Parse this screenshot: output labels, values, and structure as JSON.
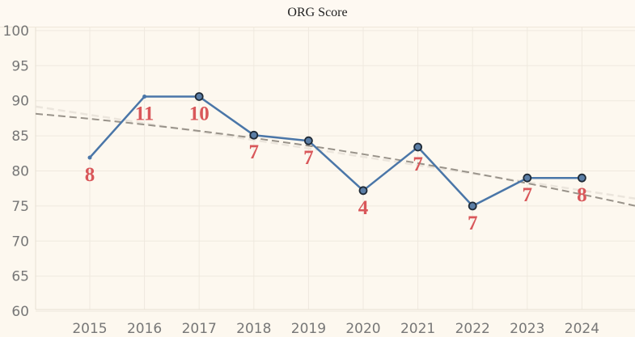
{
  "chart_data": {
    "type": "line",
    "title": "ORG Score",
    "xlabel": "",
    "ylabel": "",
    "categories": [
      "2015",
      "2016",
      "2017",
      "2018",
      "2019",
      "2020",
      "2021",
      "2022",
      "2023",
      "2024"
    ],
    "values": [
      81.9,
      90.6,
      90.6,
      85.1,
      84.3,
      77.2,
      83.4,
      75.0,
      79.0,
      79.0
    ],
    "point_labels": [
      "8",
      "11",
      "10",
      "7",
      "7",
      "4",
      "7",
      "7",
      "7",
      "8"
    ],
    "marked_points": [
      false,
      false,
      true,
      true,
      true,
      true,
      true,
      true,
      true,
      true
    ],
    "trend_lines": [
      {
        "style": "dashed",
        "color": "#99938a",
        "kind": "polynomial"
      },
      {
        "style": "dashed",
        "color": "#ebe5dc",
        "kind": "linear"
      }
    ],
    "yticks": [
      60,
      65,
      70,
      75,
      80,
      85,
      90,
      95,
      100
    ],
    "ylim": [
      58,
      102
    ],
    "grid": true,
    "colors": {
      "line": "#4a76a8",
      "marker_edge": "#1f2a36",
      "marker_fill": "#5b7ea6",
      "label": "#d9575a",
      "background": "#fdf8ef"
    }
  }
}
